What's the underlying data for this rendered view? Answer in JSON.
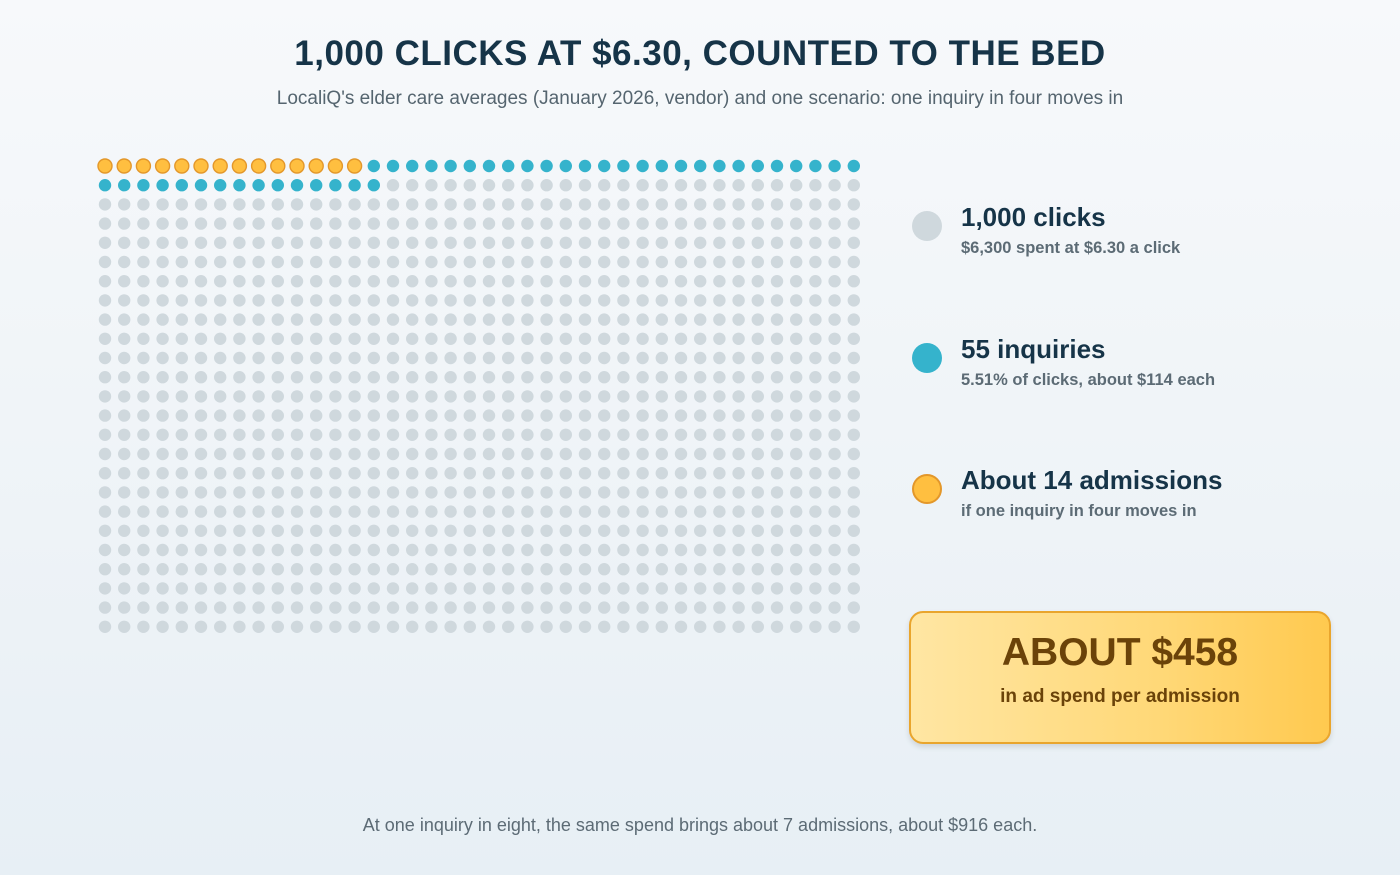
{
  "title": "1,000 CLICKS AT $6.30, COUNTED TO THE BED",
  "subtitle": "LocaliQ's elder care averages (January 2026, vendor) and one scenario: one inquiry in four moves in",
  "legend": [
    {
      "head": "1,000 clicks",
      "sub": "$6,300 spent at $6.30 a click",
      "color": "#cfd8dd"
    },
    {
      "head": "55 inquiries",
      "sub": "5.51% of clicks, about $114 each",
      "color": "#35b3cc"
    },
    {
      "head": "About 14 admissions",
      "sub": "if one inquiry in four moves in",
      "color": "#ffbf40"
    }
  ],
  "callout": {
    "value": "ABOUT $458",
    "label": "in ad spend per admission"
  },
  "footnote": "At one inquiry in eight, the same spend brings about 7 admissions, about $916 each.",
  "chart_data": {
    "type": "waffle",
    "total_units": 1000,
    "columns": 40,
    "rows": 25,
    "categories": [
      {
        "name": "1,000 clicks",
        "count": 1000,
        "color": "#cfd8dd"
      },
      {
        "name": "55 inquiries",
        "count": 55,
        "color": "#35b3cc"
      },
      {
        "name": "About 14 admissions",
        "count": 14,
        "color": "#ffbf40"
      }
    ],
    "cost_per_click": 6.3,
    "total_spend": 6300,
    "inquiry_rate_percent": 5.51,
    "cost_per_inquiry": 114,
    "admission_rate": 0.25,
    "cost_per_admission": 458,
    "alt_scenario": {
      "admission_rate": 0.125,
      "admissions": 7,
      "cost_per_admission": 916
    }
  }
}
